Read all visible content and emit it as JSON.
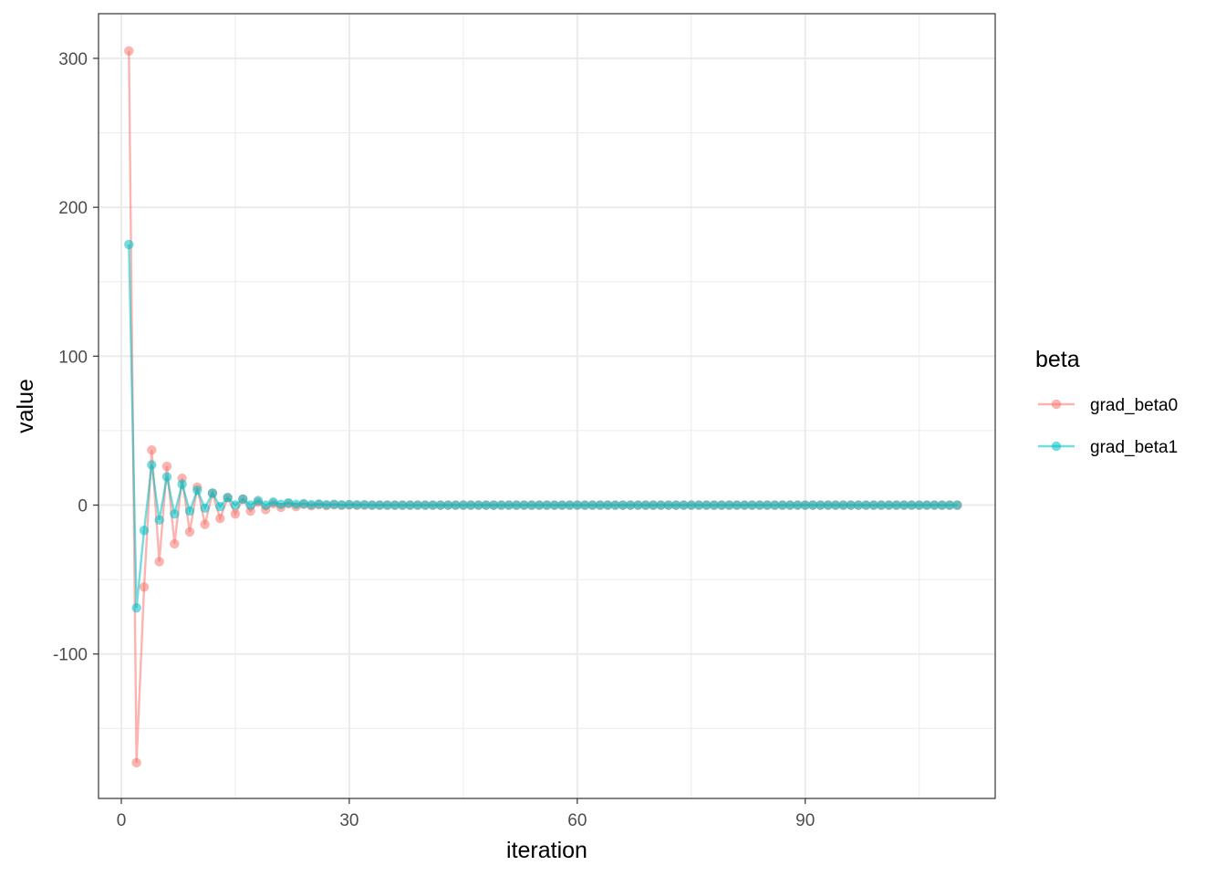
{
  "chart_data": {
    "type": "line",
    "xlabel": "iteration",
    "ylabel": "value",
    "xlim": [
      -3,
      115
    ],
    "ylim": [
      -197,
      330
    ],
    "x_ticks": [
      0,
      30,
      60,
      90
    ],
    "y_ticks": [
      -100,
      0,
      100,
      200,
      300
    ],
    "x_tick_labels": [
      "0",
      "30",
      "60",
      "90"
    ],
    "y_tick_labels": [
      "-100",
      "0",
      "100",
      "200",
      "300"
    ],
    "grid": true,
    "legend": {
      "title": "beta",
      "placement": "right",
      "entries": [
        "grad_beta0",
        "grad_beta1"
      ]
    },
    "series": [
      {
        "name": "grad_beta0",
        "color": "#F8766D",
        "x": [
          1,
          2,
          3,
          4,
          5,
          6,
          7,
          8,
          9,
          10,
          11,
          12,
          13,
          14,
          15,
          16,
          17,
          18,
          19,
          20,
          21,
          22,
          23,
          24,
          25,
          26,
          27,
          28,
          29,
          30,
          31,
          32,
          33,
          34,
          35,
          36,
          37,
          38,
          39,
          40,
          41,
          42,
          43,
          44,
          45,
          46,
          47,
          48,
          49,
          50,
          51,
          52,
          53,
          54,
          55,
          56,
          57,
          58,
          59,
          60,
          61,
          62,
          63,
          64,
          65,
          66,
          67,
          68,
          69,
          70,
          71,
          72,
          73,
          74,
          75,
          76,
          77,
          78,
          79,
          80,
          81,
          82,
          83,
          84,
          85,
          86,
          87,
          88,
          89,
          90,
          91,
          92,
          93,
          94,
          95,
          96,
          97,
          98,
          99,
          100,
          101,
          102,
          103,
          104,
          105,
          106,
          107,
          108,
          109,
          110
        ],
        "values": [
          305,
          -173,
          -55,
          37,
          -38,
          26,
          -26,
          18,
          -18,
          12,
          -13,
          8,
          -9,
          5,
          -6,
          4,
          -4,
          2,
          -3,
          1,
          -1.5,
          1,
          -1,
          0.5,
          -0.5,
          0.3,
          -0.3,
          0.2,
          -0.2,
          0.1,
          -0.1,
          0,
          0,
          0,
          0,
          0,
          0,
          0,
          0,
          0,
          0,
          0,
          0,
          0,
          0,
          0,
          0,
          0,
          0,
          0,
          0,
          0,
          0,
          0,
          0,
          0,
          0,
          0,
          0,
          0,
          0,
          0,
          0,
          0,
          0,
          0,
          0,
          0,
          0,
          0,
          0,
          0,
          0,
          0,
          0,
          0,
          0,
          0,
          0,
          0,
          0,
          0,
          0,
          0,
          0,
          0,
          0,
          0,
          0,
          0,
          0,
          0,
          0,
          0,
          0,
          0,
          0,
          0,
          0,
          0,
          0,
          0,
          0,
          0,
          0,
          0,
          0,
          0,
          0,
          0
        ]
      },
      {
        "name": "grad_beta1",
        "color": "#00BFC4",
        "x": [
          1,
          2,
          3,
          4,
          5,
          6,
          7,
          8,
          9,
          10,
          11,
          12,
          13,
          14,
          15,
          16,
          17,
          18,
          19,
          20,
          21,
          22,
          23,
          24,
          25,
          26,
          27,
          28,
          29,
          30,
          31,
          32,
          33,
          34,
          35,
          36,
          37,
          38,
          39,
          40,
          41,
          42,
          43,
          44,
          45,
          46,
          47,
          48,
          49,
          50,
          51,
          52,
          53,
          54,
          55,
          56,
          57,
          58,
          59,
          60,
          61,
          62,
          63,
          64,
          65,
          66,
          67,
          68,
          69,
          70,
          71,
          72,
          73,
          74,
          75,
          76,
          77,
          78,
          79,
          80,
          81,
          82,
          83,
          84,
          85,
          86,
          87,
          88,
          89,
          90,
          91,
          92,
          93,
          94,
          95,
          96,
          97,
          98,
          99,
          100,
          101,
          102,
          103,
          104,
          105,
          106,
          107,
          108,
          109,
          110
        ],
        "values": [
          175,
          -69,
          -17,
          27,
          -10,
          19,
          -6,
          14,
          -4,
          10,
          -2,
          8,
          -1,
          5,
          0,
          4,
          0,
          3,
          0,
          2,
          0.5,
          1.5,
          0.5,
          1,
          0.3,
          0.7,
          0.2,
          0.5,
          0.1,
          0.3,
          0.1,
          0.2,
          0,
          0,
          0,
          0,
          0,
          0,
          0,
          0,
          0,
          0,
          0,
          0,
          0,
          0,
          0,
          0,
          0,
          0,
          0,
          0,
          0,
          0,
          0,
          0,
          0,
          0,
          0,
          0,
          0,
          0,
          0,
          0,
          0,
          0,
          0,
          0,
          0,
          0,
          0,
          0,
          0,
          0,
          0,
          0,
          0,
          0,
          0,
          0,
          0,
          0,
          0,
          0,
          0,
          0,
          0,
          0,
          0,
          0,
          0,
          0,
          0,
          0,
          0,
          0,
          0,
          0,
          0,
          0,
          0,
          0,
          0,
          0,
          0,
          0,
          0,
          0,
          0,
          0
        ]
      }
    ]
  }
}
